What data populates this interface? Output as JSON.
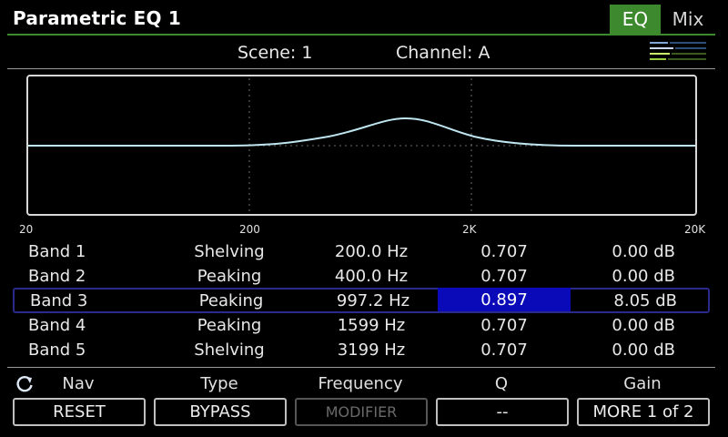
{
  "header": {
    "title": "Parametric EQ 1",
    "tabs": [
      {
        "label": "EQ",
        "active": true
      },
      {
        "label": "Mix",
        "active": false
      }
    ]
  },
  "status": {
    "scene": "Scene: 1",
    "channel": "Channel: A"
  },
  "graph": {
    "axis_labels": [
      "20",
      "200",
      "2K",
      "20K"
    ],
    "curve_color": "#bfe6f0"
  },
  "bands": [
    {
      "name": "Band 1",
      "type": "Shelving",
      "frequency": "200.0 Hz",
      "q": "0.707",
      "gain": "0.00 dB"
    },
    {
      "name": "Band 2",
      "type": "Peaking",
      "frequency": "400.0 Hz",
      "q": "0.707",
      "gain": "0.00 dB"
    },
    {
      "name": "Band 3",
      "type": "Peaking",
      "frequency": "997.2 Hz",
      "q": "0.897",
      "gain": "8.05 dB"
    },
    {
      "name": "Band 4",
      "type": "Peaking",
      "frequency": "1599 Hz",
      "q": "0.707",
      "gain": "0.00 dB"
    },
    {
      "name": "Band 5",
      "type": "Shelving",
      "frequency": "3199 Hz",
      "q": "0.707",
      "gain": "0.00 dB"
    }
  ],
  "selected_band": "Band 3",
  "knobs": {
    "nav": "Nav",
    "type": "Type",
    "frequency": "Frequency",
    "q": "Q",
    "gain": "Gain"
  },
  "buttons": {
    "reset": "RESET",
    "bypass": "BYPASS",
    "modifier": "MODIFIER",
    "q_btn": "--",
    "more": "MORE 1 of 2"
  },
  "colors": {
    "accent_green": "#3d8a2e",
    "selection_blue": "#0a0ab8"
  }
}
